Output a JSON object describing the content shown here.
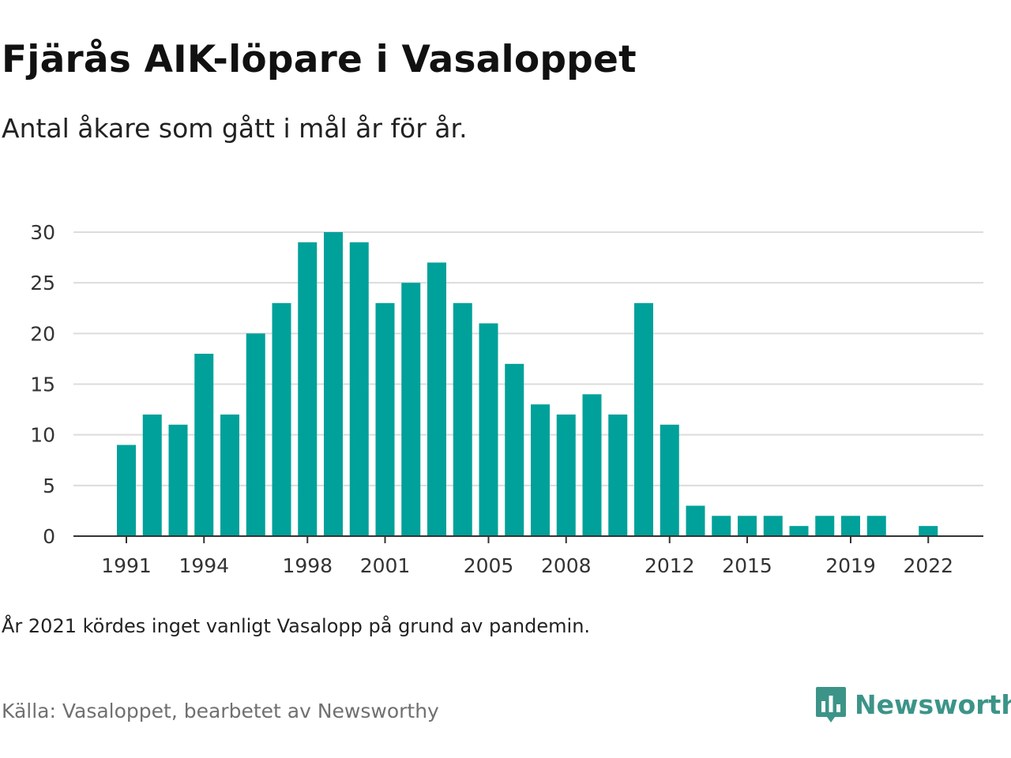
{
  "title": "Fjärås AIK-löpare i Vasaloppet",
  "subtitle": "Antal åkare som gått i mål år för år.",
  "note": "År 2021 kördes inget vanligt Vasalopp på grund av pandemin.",
  "source": "Källa: Vasaloppet, bearbetet av Newsworthy",
  "brand": {
    "name": "Newsworthy",
    "logo_icon": "newsworthy-chart-bubble-icon"
  },
  "colors": {
    "bar": "#00a19a",
    "grid": "#dcdcdc",
    "axis": "#333333",
    "brand": "#3c9488"
  },
  "chart_data": {
    "type": "bar",
    "title": "Fjärås AIK-löpare i Vasaloppet",
    "subtitle": "Antal åkare som gått i mål år för år.",
    "xlabel": "",
    "ylabel": "",
    "x": [
      1991,
      1992,
      1993,
      1994,
      1995,
      1996,
      1997,
      1998,
      1999,
      2000,
      2001,
      2002,
      2003,
      2004,
      2005,
      2006,
      2007,
      2008,
      2009,
      2010,
      2011,
      2012,
      2013,
      2014,
      2015,
      2016,
      2017,
      2018,
      2019,
      2020,
      2021,
      2022
    ],
    "values": [
      9,
      12,
      11,
      18,
      12,
      20,
      23,
      29,
      30,
      29,
      23,
      25,
      27,
      23,
      21,
      17,
      13,
      12,
      14,
      12,
      23,
      11,
      3,
      2,
      2,
      2,
      1,
      2,
      2,
      2,
      0,
      1
    ],
    "x_tick_labels": [
      "1991",
      "1994",
      "1998",
      "2001",
      "2005",
      "2008",
      "2012",
      "2015",
      "2019",
      "2022"
    ],
    "y_ticks": [
      0,
      5,
      10,
      15,
      20,
      25,
      30
    ],
    "ylim": [
      0,
      30
    ],
    "grid": "horizontal",
    "legend": "none"
  }
}
